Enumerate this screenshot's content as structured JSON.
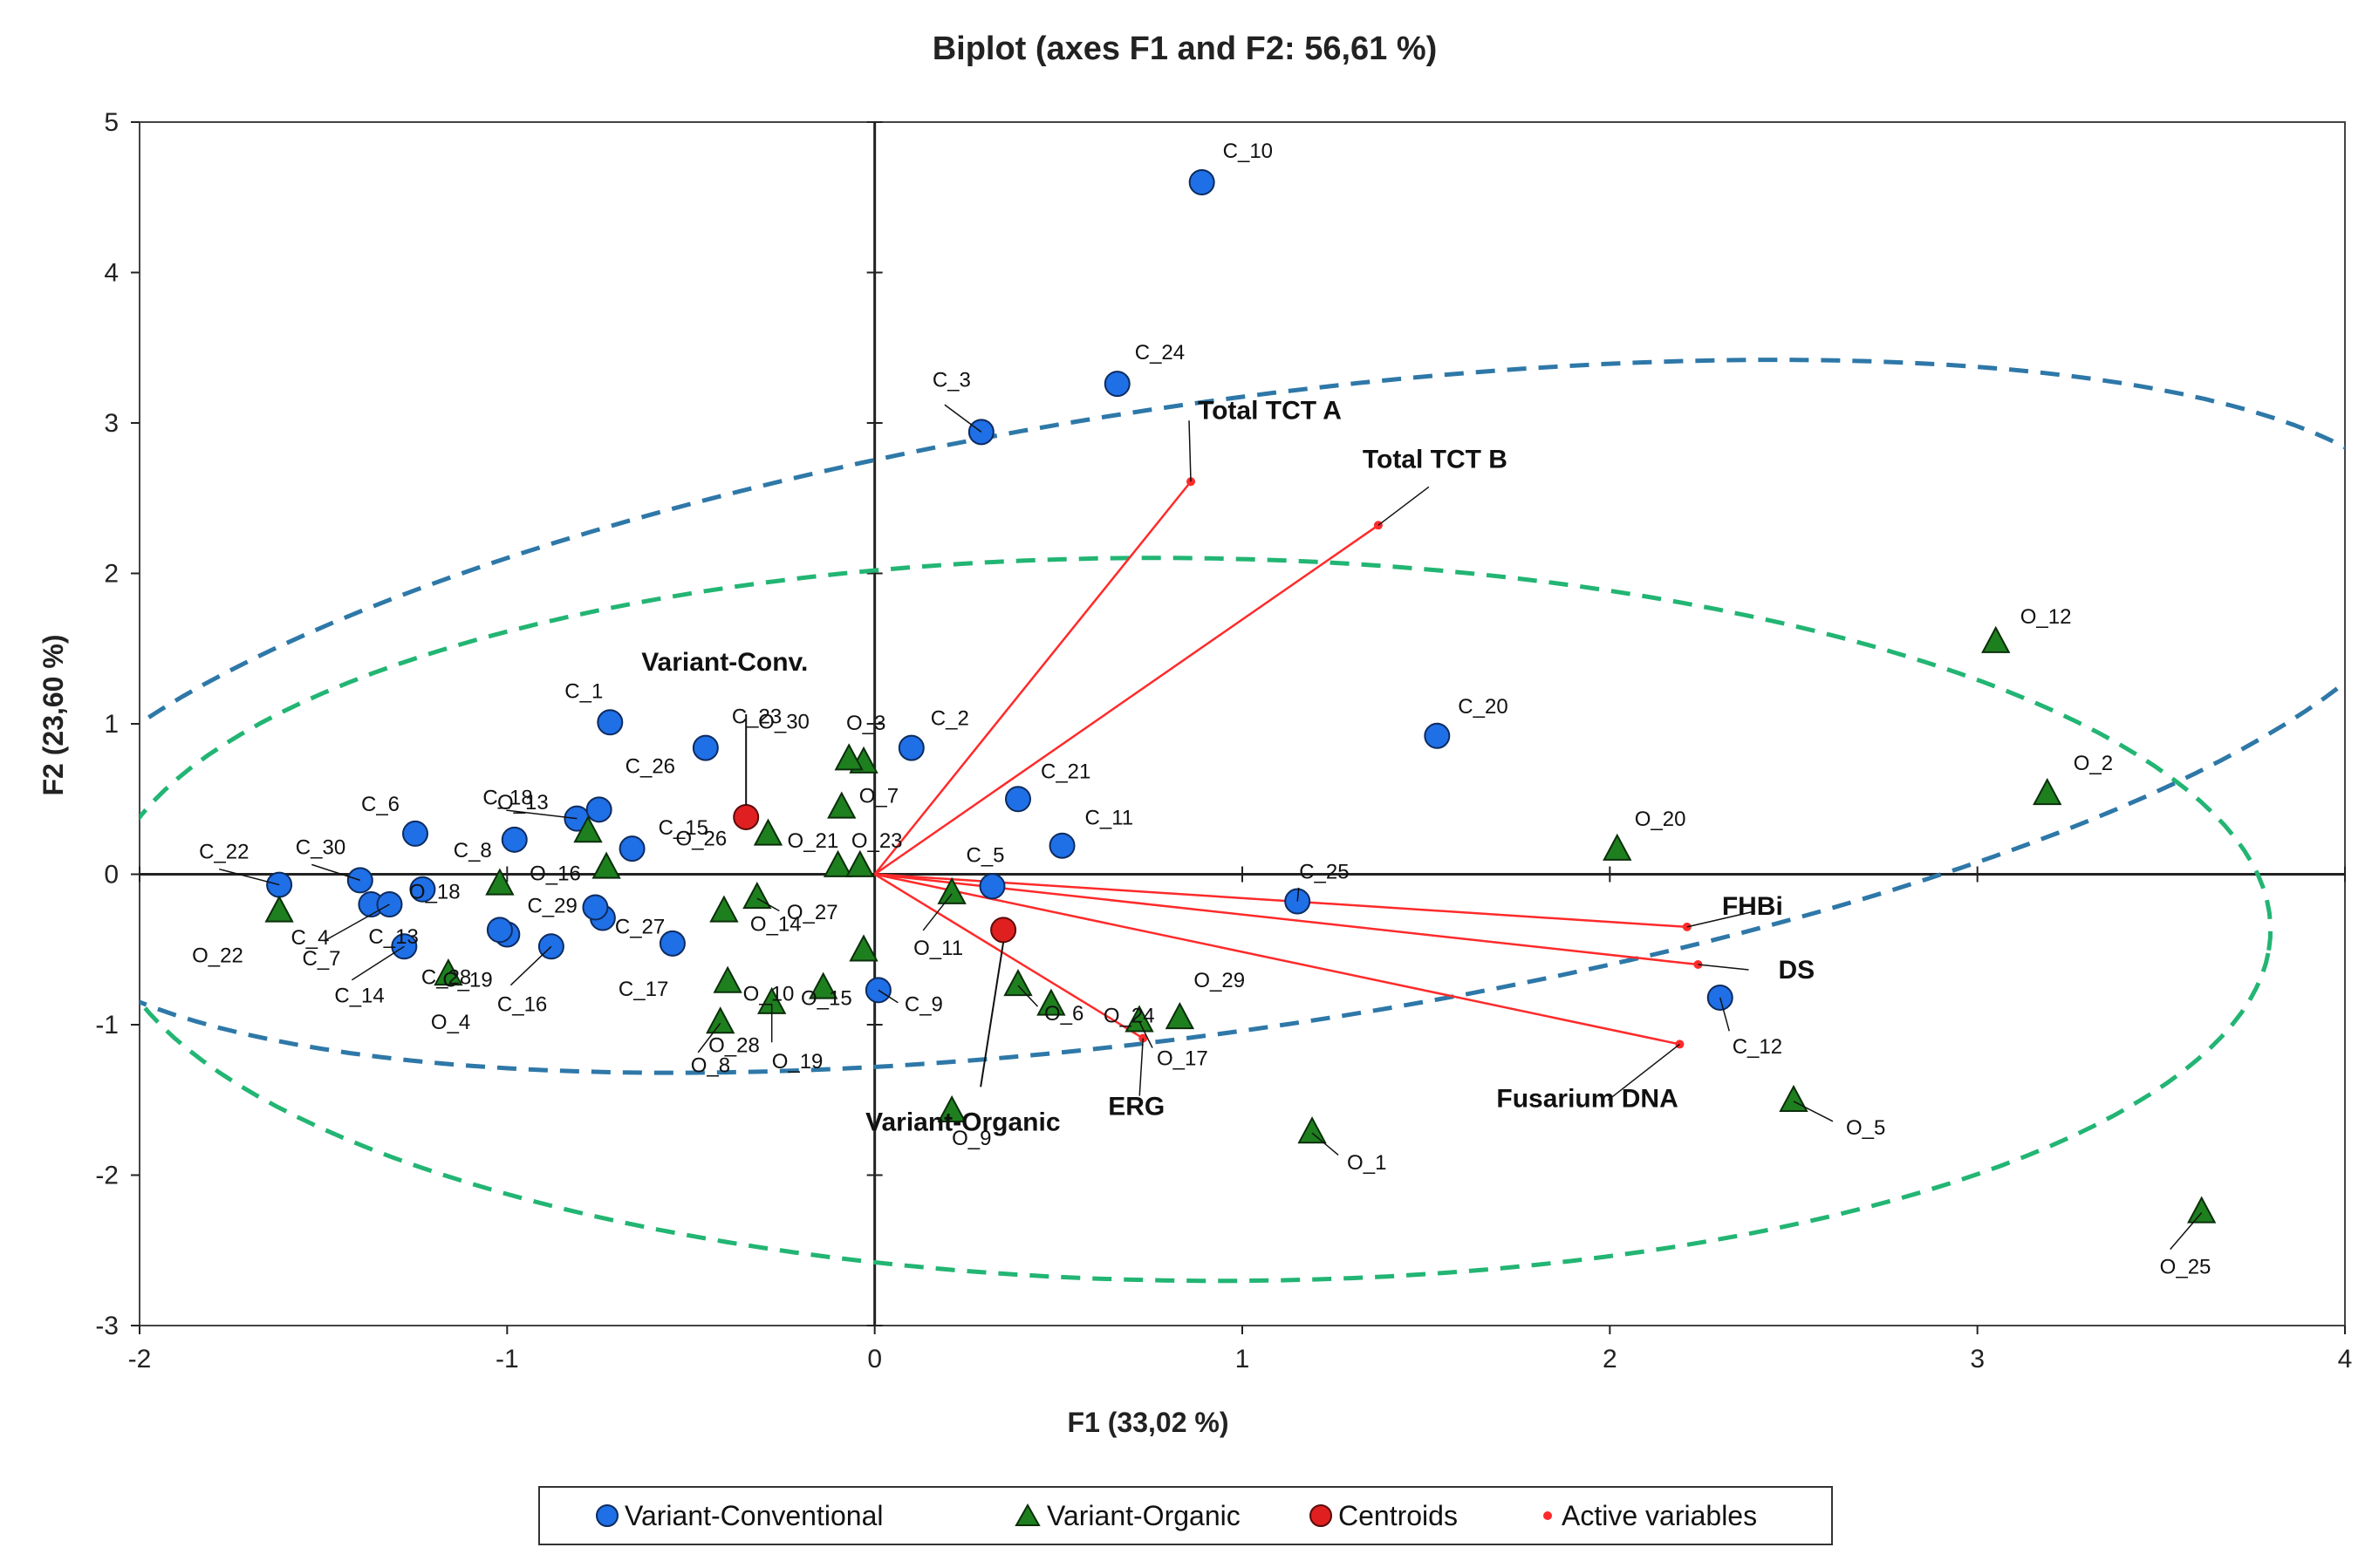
{
  "chart_data": {
    "type": "scatter",
    "title": "Biplot (axes F1 and F2: 56,61 %)",
    "xlabel": "F1 (33,02 %)",
    "ylabel": "F2 (23,60 %)",
    "xlim": [
      -2,
      4
    ],
    "ylim": [
      -3,
      5
    ],
    "xticks": [
      "-2",
      "-1",
      "0",
      "1",
      "2",
      "3",
      "4"
    ],
    "yticks": [
      "-3",
      "-2",
      "-1",
      "0",
      "1",
      "2",
      "3",
      "4",
      "5"
    ],
    "legend": {
      "position": "bottom",
      "conventional": "Variant-Conventional",
      "organic": "Variant-Organic",
      "centroids": "Centroids",
      "active": "Active variables"
    },
    "colors": {
      "conventional": "#1f6fe6",
      "organic": "#1e7f1e",
      "centroid": "#e02020",
      "variable": "#ff2a2a",
      "ellipse_conventional": "#2e78a8",
      "ellipse_organic": "#22b573"
    },
    "conventional": [
      {
        "label": "C_1",
        "x": -0.72,
        "y": 1.01
      },
      {
        "label": "C_2",
        "x": 0.1,
        "y": 0.84
      },
      {
        "label": "C_3",
        "x": 0.29,
        "y": 2.94
      },
      {
        "label": "C_4",
        "x": -1.37,
        "y": -0.2
      },
      {
        "label": "C_5",
        "x": 0.32,
        "y": -0.08
      },
      {
        "label": "C_6",
        "x": -1.25,
        "y": 0.27
      },
      {
        "label": "C_7",
        "x": -1.32,
        "y": -0.2
      },
      {
        "label": "C_8",
        "x": -0.98,
        "y": 0.23
      },
      {
        "label": "C_9",
        "x": 0.01,
        "y": -0.77
      },
      {
        "label": "C_10",
        "x": 0.89,
        "y": 4.6
      },
      {
        "label": "C_11",
        "x": 0.51,
        "y": 0.19
      },
      {
        "label": "C_12",
        "x": 2.3,
        "y": -0.82
      },
      {
        "label": "C_13",
        "x": -1.23,
        "y": -0.1
      },
      {
        "label": "C_14",
        "x": -1.28,
        "y": -0.48
      },
      {
        "label": "C_15",
        "x": -0.66,
        "y": 0.17
      },
      {
        "label": "C_16",
        "x": -0.88,
        "y": -0.48
      },
      {
        "label": "C_17",
        "x": -0.55,
        "y": -0.46
      },
      {
        "label": "C_18",
        "x": -0.81,
        "y": 0.37
      },
      {
        "label": "C_19",
        "x": -1.0,
        "y": -0.4
      },
      {
        "label": "C_20",
        "x": 1.53,
        "y": 0.92
      },
      {
        "label": "C_21",
        "x": 0.39,
        "y": 0.5
      },
      {
        "label": "C_22",
        "x": -1.62,
        "y": -0.07
      },
      {
        "label": "C_23",
        "x": -0.46,
        "y": 0.84
      },
      {
        "label": "C_24",
        "x": 0.66,
        "y": 3.26
      },
      {
        "label": "C_25",
        "x": 1.15,
        "y": -0.18
      },
      {
        "label": "C_26",
        "x": -0.75,
        "y": 0.43
      },
      {
        "label": "C_27",
        "x": -0.74,
        "y": -0.29
      },
      {
        "label": "C_28",
        "x": -1.02,
        "y": -0.37
      },
      {
        "label": "C_29",
        "x": -0.76,
        "y": -0.22
      },
      {
        "label": "C_30",
        "x": -1.4,
        "y": -0.04
      }
    ],
    "organic": [
      {
        "label": "O_1",
        "x": 1.19,
        "y": -1.72
      },
      {
        "label": "O_2",
        "x": 3.19,
        "y": 0.53
      },
      {
        "label": "O_3",
        "x": -0.03,
        "y": 0.74
      },
      {
        "label": "O_4",
        "x": -1.16,
        "y": -0.67
      },
      {
        "label": "O_5",
        "x": 2.5,
        "y": -1.51
      },
      {
        "label": "O_6",
        "x": 0.39,
        "y": -0.74
      },
      {
        "label": "O_7",
        "x": -0.09,
        "y": 0.44
      },
      {
        "label": "O_8",
        "x": -0.42,
        "y": -0.99
      },
      {
        "label": "O_9",
        "x": 0.21,
        "y": -1.58
      },
      {
        "label": "O_10",
        "x": -0.14,
        "y": -0.76
      },
      {
        "label": "O_11",
        "x": 0.21,
        "y": -0.13
      },
      {
        "label": "O_12",
        "x": 3.05,
        "y": 1.54
      },
      {
        "label": "O_13",
        "x": -0.78,
        "y": 0.28
      },
      {
        "label": "O_14",
        "x": -0.41,
        "y": -0.25
      },
      {
        "label": "O_15",
        "x": -0.03,
        "y": -0.51
      },
      {
        "label": "O_16",
        "x": -0.73,
        "y": 0.04
      },
      {
        "label": "O_17",
        "x": 0.72,
        "y": -0.98
      },
      {
        "label": "O_18",
        "x": -1.02,
        "y": -0.07
      },
      {
        "label": "O_19",
        "x": -0.28,
        "y": -0.86
      },
      {
        "label": "O_20",
        "x": 2.02,
        "y": 0.16
      },
      {
        "label": "O_21",
        "x": -0.1,
        "y": 0.05
      },
      {
        "label": "O_22",
        "x": -1.62,
        "y": -0.25
      },
      {
        "label": "O_23",
        "x": -0.04,
        "y": 0.05
      },
      {
        "label": "O_24",
        "x": 0.48,
        "y": -0.87
      },
      {
        "label": "O_25",
        "x": 3.61,
        "y": -2.25
      },
      {
        "label": "O_26",
        "x": -0.29,
        "y": 0.26
      },
      {
        "label": "O_27",
        "x": -0.32,
        "y": -0.16
      },
      {
        "label": "O_28",
        "x": -0.4,
        "y": -0.72
      },
      {
        "label": "O_29",
        "x": 0.83,
        "y": -0.96
      },
      {
        "label": "O_30",
        "x": -0.07,
        "y": 0.76
      }
    ],
    "centroids": [
      {
        "label": "Variant-Conv.",
        "x": -0.35,
        "y": 0.38
      },
      {
        "label": "Variant-Organic",
        "x": 0.35,
        "y": -0.37
      }
    ],
    "variables": [
      {
        "label": "Total TCT A",
        "x": 0.86,
        "y": 2.61
      },
      {
        "label": "Total TCT B",
        "x": 1.37,
        "y": 2.32
      },
      {
        "label": "FHBi",
        "x": 2.21,
        "y": -0.35
      },
      {
        "label": "DS",
        "x": 2.24,
        "y": -0.6
      },
      {
        "label": "Fusarium DNA",
        "x": 2.19,
        "y": -1.13
      },
      {
        "label": "ERG",
        "x": 0.73,
        "y": -1.09
      }
    ]
  }
}
